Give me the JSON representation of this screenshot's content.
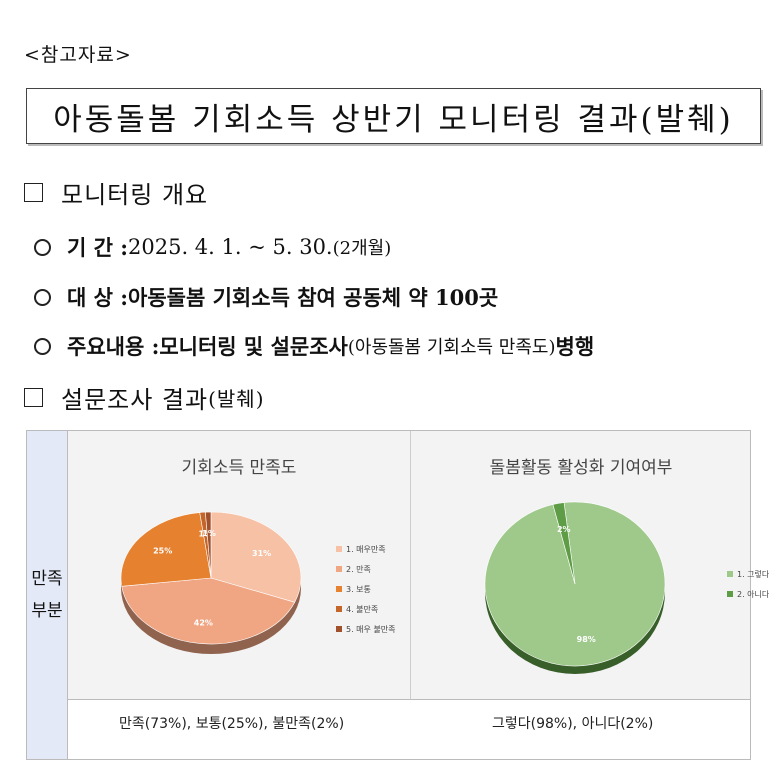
{
  "reference_label": "<참고자료>",
  "title": "아동돌봄 기회소득 상반기 모니터링 결과(발췌)",
  "section1": {
    "heading": "모니터링 개요",
    "items": [
      {
        "label": "기 간 : ",
        "text": "2025. 4. 1. ~ 5. 30. ",
        "note": "(2개월)"
      },
      {
        "label": "대 상 : ",
        "text": "아동돌봄 기회소득 참여 공동체 약 100곳"
      },
      {
        "label": "주요내용 : ",
        "text": "모니터링 및 설문조사",
        "note": "(아동돌봄 기회소득 만족도)",
        "tail": " 병행"
      }
    ]
  },
  "section2": {
    "heading": "설문조사 결과",
    "heading_note": "(발췌)"
  },
  "table": {
    "side_label_top": "만족",
    "side_label_bottom": "부분",
    "caption_left": "만족(73%), 보통(25%), 불만족(2%)",
    "caption_right": "그렇다(98%), 아니다(2%)"
  },
  "chart_data": [
    {
      "type": "pie",
      "title": "기회소득 만족도",
      "categories": [
        "1. 매우만족",
        "2. 만족",
        "3. 보통",
        "4. 불만족",
        "5. 매우 불만족"
      ],
      "values": [
        31,
        42,
        25,
        1,
        1
      ],
      "labels": [
        "31%",
        "42%",
        "25%",
        "1%",
        "1%"
      ],
      "colors": [
        "#f6c1a5",
        "#f0a583",
        "#e5812f",
        "#c4662a",
        "#a0502a"
      ],
      "legend": "right"
    },
    {
      "type": "pie",
      "title": "돌봄활동 활성화 기여여부",
      "categories": [
        "1. 그렇다",
        "2. 아니다"
      ],
      "values": [
        98,
        2
      ],
      "labels": [
        "98%",
        "2%"
      ],
      "colors": [
        "#9ec98b",
        "#5e9c45"
      ],
      "legend": "right"
    }
  ]
}
